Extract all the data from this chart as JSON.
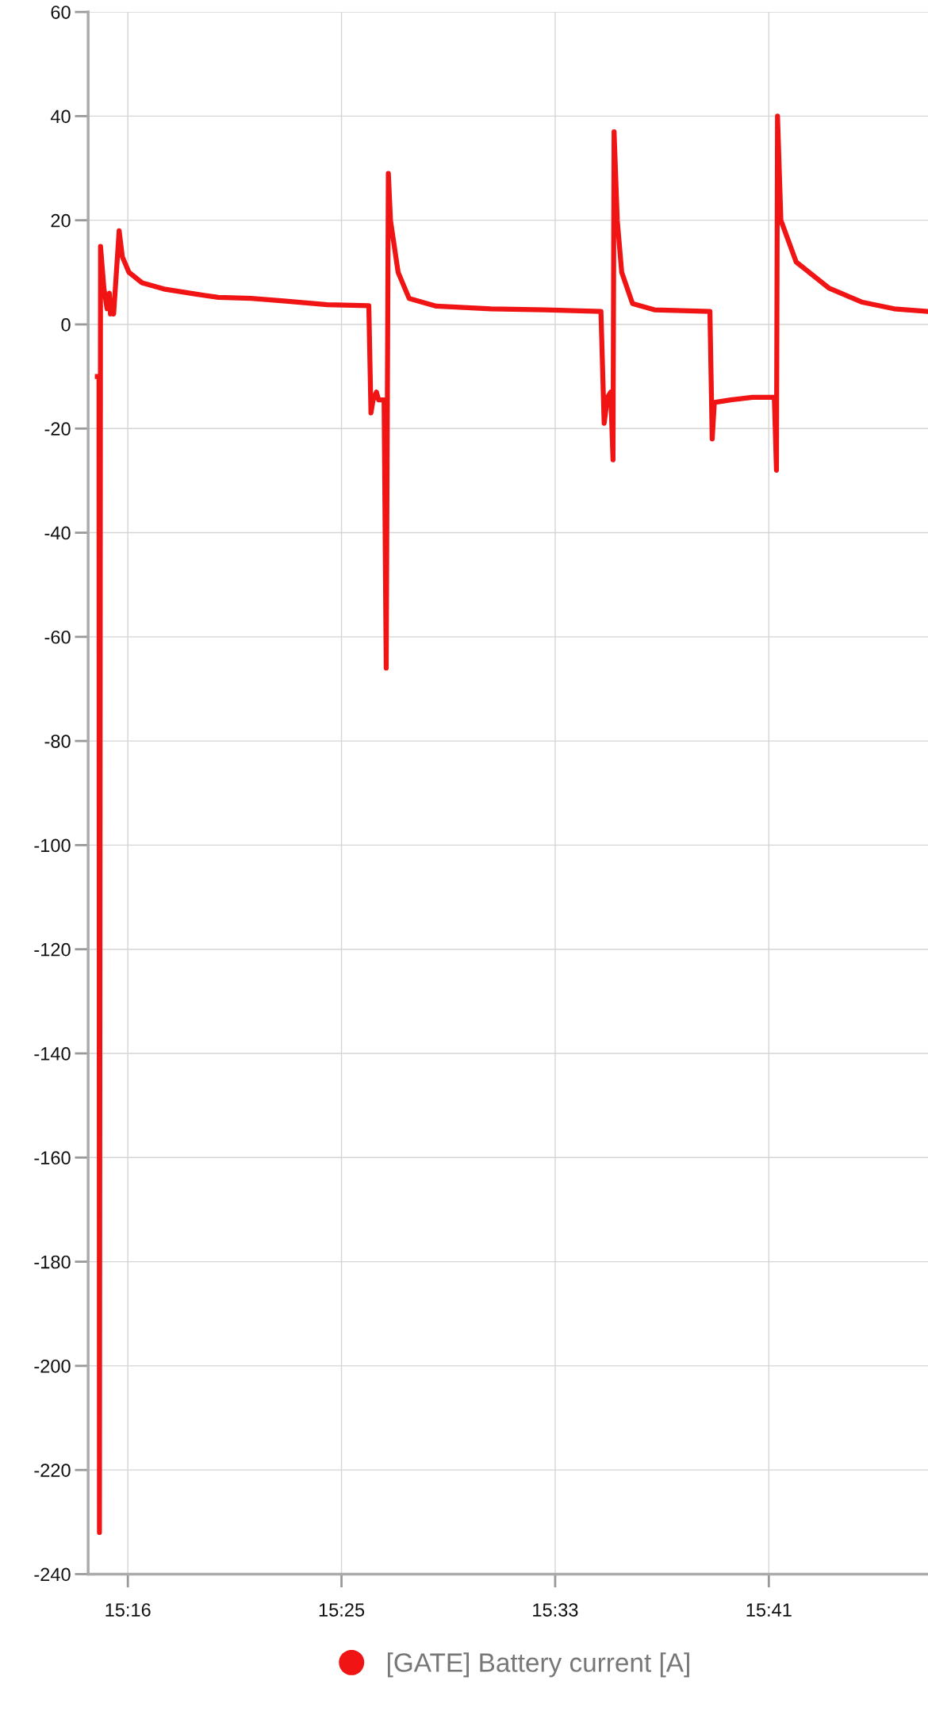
{
  "chart_data": {
    "type": "line",
    "x": [
      15.25,
      15.2511,
      15.2514,
      15.2521,
      15.2543,
      15.2564,
      15.2579,
      15.2586,
      15.26,
      15.2607,
      15.2643,
      15.2664,
      15.2707,
      15.2793,
      15.2936,
      15.315,
      15.3293,
      15.3507,
      15.3721,
      15.4007,
      15.4279,
      15.4293,
      15.4307,
      15.4329,
      15.4343,
      15.4379,
      15.4393,
      15.4407,
      15.4421,
      15.4471,
      15.4543,
      15.4721,
      15.5079,
      15.5436,
      15.58,
      15.5821,
      15.5843,
      15.5864,
      15.5879,
      15.5886,
      15.5907,
      15.5936,
      15.6007,
      15.615,
      15.6514,
      15.6529,
      15.6543,
      15.665,
      15.6793,
      15.6936,
      15.695,
      15.6957,
      15.6979,
      15.7079,
      15.7293,
      15.7507,
      15.7721,
      15.7943
    ],
    "series": [
      {
        "name": "[GATE] Battery current [A]",
        "color": "#f01414",
        "values": [
          -10,
          -10,
          -232,
          15,
          7,
          3,
          6,
          2,
          4,
          2,
          18,
          13,
          10,
          8,
          6.8,
          5.8,
          5.2,
          5,
          4.5,
          3.8,
          3.6,
          -17,
          -14.5,
          -13,
          -14.5,
          -14.5,
          -66,
          29,
          20,
          10,
          5,
          3.5,
          3,
          2.8,
          2.5,
          -19,
          -14,
          -13,
          -26,
          37,
          20,
          10,
          4,
          2.8,
          2.5,
          -22,
          -15,
          -14.5,
          -14,
          -14,
          -28,
          40,
          20,
          12,
          7,
          4.3,
          3,
          2.5
        ]
      }
    ],
    "xlim": [
      15.244,
      15.7943
    ],
    "xticks": [
      {
        "value": 15.27,
        "label": "15:16"
      },
      {
        "value": 15.41,
        "label": "15:25"
      },
      {
        "value": 15.55,
        "label": "15:33"
      },
      {
        "value": 15.69,
        "label": "15:41"
      }
    ],
    "ylim": [
      -240,
      60
    ],
    "yticks": [
      -240,
      -220,
      -200,
      -180,
      -160,
      -140,
      -120,
      -100,
      -80,
      -60,
      -40,
      -20,
      0,
      20,
      40,
      60
    ],
    "grid": true,
    "legend": "bottom",
    "marker": "none",
    "line_style": "solid"
  }
}
